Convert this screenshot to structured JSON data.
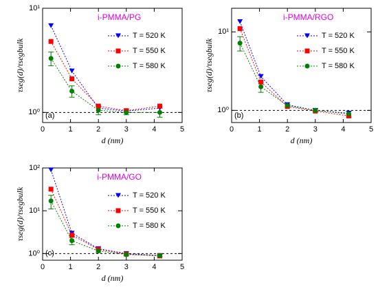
{
  "chart_data": [
    {
      "type": "line",
      "title": "i-PMMA/PG",
      "panel_label": "(a)",
      "xlabel": "d (nm)",
      "ylabel": "τseg(d)/τsegbulk",
      "x": [
        0.3,
        1.05,
        2,
        3,
        4.2
      ],
      "xlim": [
        0,
        5
      ],
      "xticks": [
        0,
        1,
        2,
        3,
        4,
        5
      ],
      "ylim": [
        0.8,
        10
      ],
      "log_y": true,
      "yticks": [
        {
          "value": 1,
          "label": "10⁰"
        },
        {
          "value": 10,
          "label": "10¹"
        }
      ],
      "hline": 1,
      "legend": "upper right",
      "series": [
        {
          "name": "T = 520 K",
          "color": "#0000ff",
          "marker": "triangle-down",
          "values": [
            6.8,
            2.5,
            1.1,
            1.03,
            1.1
          ]
        },
        {
          "name": "T = 550 K",
          "color": "#ff0000",
          "marker": "square",
          "values": [
            4.8,
            2.1,
            1.15,
            1.04,
            1.15
          ]
        },
        {
          "name": "T = 580 K",
          "color": "#008000",
          "marker": "circle",
          "values": [
            3.3,
            1.6,
            1.05,
            1.0,
            1.0
          ],
          "errors": [
            0.5,
            0.2,
            0.1,
            0.05,
            0.1
          ]
        }
      ]
    },
    {
      "type": "line",
      "title": "i-PMMA/RGO",
      "panel_label": "(b)",
      "xlabel": "d (nm)",
      "ylabel": "τseg(d)/τsegbulk",
      "x": [
        0.3,
        1.05,
        2,
        3,
        4.2
      ],
      "xlim": [
        0,
        5
      ],
      "xticks": [
        0,
        1,
        2,
        3,
        4,
        5
      ],
      "ylim": [
        0.7,
        20
      ],
      "log_y": true,
      "yticks": [
        {
          "value": 1,
          "label": "10⁰"
        },
        {
          "value": 10,
          "label": "10¹"
        }
      ],
      "hline": 1,
      "legend": "upper right",
      "series": [
        {
          "name": "T = 520 K",
          "color": "#0000ff",
          "marker": "triangle-down",
          "values": [
            13.5,
            2.7,
            1.18,
            1.0,
            0.92
          ]
        },
        {
          "name": "T = 550 K",
          "color": "#ff0000",
          "marker": "square",
          "values": [
            11,
            2.3,
            1.12,
            0.98,
            0.85
          ]
        },
        {
          "name": "T = 580 K",
          "color": "#008000",
          "marker": "circle",
          "values": [
            7.2,
            2.0,
            1.15,
            1.0,
            0.9
          ],
          "errors": [
            1.5,
            0.3,
            0.05,
            0.05,
            0.08
          ]
        }
      ]
    },
    {
      "type": "line",
      "title": "i-PMMA/GO",
      "panel_label": "(c)",
      "xlabel": "d (nm)",
      "ylabel": "τseg(d)/τsegbulk",
      "x": [
        0.3,
        1.05,
        2,
        3,
        4.2
      ],
      "xlim": [
        0,
        5
      ],
      "xticks": [
        0,
        1,
        2,
        3,
        4,
        5
      ],
      "ylim": [
        0.7,
        100
      ],
      "log_y": true,
      "yticks": [
        {
          "value": 1,
          "label": "10⁰"
        },
        {
          "value": 10,
          "label": "10¹"
        },
        {
          "value": 100,
          "label": "10²"
        }
      ],
      "hline": 1,
      "legend": "upper right",
      "series": [
        {
          "name": "T = 520 K",
          "color": "#0000ff",
          "marker": "triangle-down",
          "values": [
            90,
            3.0,
            1.3,
            1.0,
            0.9
          ]
        },
        {
          "name": "T = 550 K",
          "color": "#ff0000",
          "marker": "square",
          "values": [
            32,
            2.7,
            1.25,
            0.97,
            0.88
          ]
        },
        {
          "name": "T = 580 K",
          "color": "#008000",
          "marker": "circle",
          "values": [
            17,
            2.0,
            1.15,
            0.95,
            0.9
          ],
          "errors": [
            6,
            0.4,
            0.1,
            0.05,
            0.05
          ]
        }
      ]
    }
  ]
}
